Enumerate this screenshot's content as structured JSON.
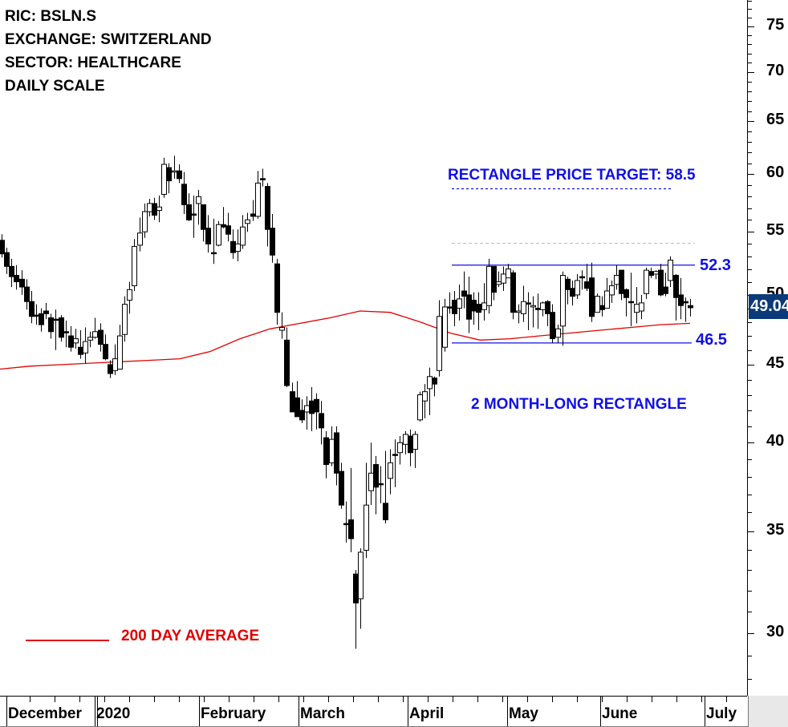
{
  "header": {
    "lines": [
      "RIC: BSLN.S",
      "EXCHANGE: SWITZERLAND",
      "SECTOR: HEALTHCARE",
      "DAILY SCALE"
    ]
  },
  "annotations": {
    "target_label": "RECTANGLE PRICE TARGET: 58.5",
    "pattern_label": "2 MONTH-LONG RECTANGLE",
    "upper_value": "52.3",
    "lower_value": "46.5",
    "legend_label": "200 DAY AVERAGE",
    "last_price": "49.04"
  },
  "colors": {
    "rect_lines": "#1010e6",
    "ma_line": "#e00000",
    "last_badge_bg": "#0b3a78",
    "candle": "#000000",
    "target_dash": "#1010e6",
    "gray_dash": "#bbbbbb"
  },
  "chart_data": {
    "type": "candlestick",
    "title": "BSLN.S Daily",
    "xlabel": "",
    "ylabel": "",
    "yscale": "log",
    "ylim": [
      26.5,
      79
    ],
    "yticks": [
      30,
      35,
      40,
      45,
      50,
      55,
      60,
      65,
      70,
      75
    ],
    "x_tick_labels": [
      "December",
      "2020",
      "February",
      "March",
      "April",
      "May",
      "June",
      "July"
    ],
    "grid": false,
    "rectangle": {
      "upper": 52.3,
      "lower": 46.5,
      "target": 58.5,
      "duration": "2 months"
    },
    "last_price": 49.04,
    "series": [
      {
        "name": "BSLN.S",
        "candles_ohlc": [
          [
            54.3,
            53.2,
            54.8,
            52.9
          ],
          [
            53.3,
            52.2,
            53.7,
            51.6
          ],
          [
            52.2,
            51.4,
            52.8,
            50.6
          ],
          [
            51.5,
            51.0,
            52.3,
            50.4
          ],
          [
            51.2,
            50.6,
            51.9,
            50.0
          ],
          [
            50.6,
            49.5,
            51.2,
            48.9
          ],
          [
            49.5,
            48.4,
            50.3,
            47.9
          ],
          [
            48.5,
            48.5,
            49.3,
            47.8
          ],
          [
            48.6,
            47.8,
            49.0,
            47.3
          ],
          [
            48.8,
            48.6,
            49.4,
            48.2
          ],
          [
            48.3,
            47.3,
            48.6,
            46.8
          ],
          [
            48.2,
            48.2,
            48.9,
            46.0
          ],
          [
            48.3,
            46.9,
            48.5,
            46.6
          ],
          [
            47.3,
            47.3,
            48.1,
            46.2
          ],
          [
            47.0,
            46.2,
            47.7,
            45.9
          ],
          [
            46.5,
            46.8,
            47.5,
            46.1
          ],
          [
            46.2,
            45.7,
            47.4,
            45.4
          ],
          [
            45.8,
            46.6,
            47.6,
            45.1
          ],
          [
            46.7,
            46.9,
            47.3,
            46.2
          ],
          [
            46.9,
            47.3,
            48.3,
            46.8
          ],
          [
            47.4,
            46.4,
            47.9,
            45.9
          ],
          [
            46.4,
            45.4,
            47.1,
            45.3
          ],
          [
            45.0,
            44.4,
            45.3,
            44.1
          ],
          [
            44.6,
            45.4,
            46.4,
            44.3
          ],
          [
            44.7,
            47.0,
            47.8,
            44.9
          ],
          [
            47.1,
            49.3,
            49.9,
            46.6
          ],
          [
            49.6,
            50.4,
            51.0,
            48.6
          ],
          [
            50.7,
            53.8,
            54.4,
            50.3
          ],
          [
            53.9,
            54.9,
            56.2,
            53.4
          ],
          [
            55.0,
            56.7,
            57.4,
            54.5
          ],
          [
            56.7,
            57.4,
            57.8,
            56.3
          ],
          [
            57.4,
            56.4,
            57.9,
            56.0
          ],
          [
            56.8,
            57.1,
            58.1,
            55.8
          ],
          [
            58.2,
            60.9,
            61.5,
            57.9
          ],
          [
            60.6,
            59.4,
            61.0,
            58.3
          ],
          [
            60.2,
            60.3,
            61.7,
            59.6
          ],
          [
            60.3,
            59.6,
            60.9,
            59.2
          ],
          [
            59.1,
            57.3,
            60.2,
            56.5
          ],
          [
            57.3,
            56.0,
            58.3,
            55.9
          ],
          [
            56.5,
            56.5,
            58.1,
            54.5
          ],
          [
            57.4,
            58.0,
            58.6,
            55.6
          ],
          [
            57.3,
            55.2,
            57.3,
            54.2
          ],
          [
            55.3,
            54.0,
            56.4,
            53.3
          ],
          [
            53.3,
            53.3,
            56.1,
            52.4
          ],
          [
            53.9,
            55.6,
            55.9,
            53.8
          ],
          [
            55.6,
            55.4,
            57.1,
            55.3
          ],
          [
            55.5,
            54.8,
            56.6,
            54.2
          ],
          [
            54.2,
            53.3,
            55.2,
            52.8
          ],
          [
            53.4,
            54.0,
            55.2,
            52.6
          ],
          [
            53.9,
            55.4,
            56.4,
            53.6
          ],
          [
            55.7,
            56.0,
            56.6,
            55.0
          ],
          [
            56.5,
            56.3,
            57.7,
            55.9
          ],
          [
            56.3,
            59.2,
            60.3,
            56.1
          ],
          [
            59.6,
            59.6,
            60.5,
            58.9
          ],
          [
            58.9,
            55.2,
            59.2,
            53.8
          ],
          [
            55.3,
            53.1,
            56.5,
            52.5
          ],
          [
            52.4,
            48.7,
            52.8,
            47.8
          ],
          [
            47.4,
            47.6,
            48.7,
            46.8
          ],
          [
            46.7,
            43.6,
            47.6,
            43.5
          ],
          [
            43.2,
            41.9,
            43.8,
            42.4
          ],
          [
            42.8,
            41.6,
            43.9,
            42.6
          ],
          [
            42.0,
            41.4,
            42.7,
            41.2
          ],
          [
            41.9,
            42.3,
            42.9,
            40.8
          ],
          [
            42.6,
            41.8,
            43.5,
            40.7
          ],
          [
            42.7,
            41.9,
            43.1,
            40.8
          ],
          [
            41.8,
            40.9,
            42.6,
            39.9
          ],
          [
            40.3,
            38.7,
            40.7,
            37.9
          ],
          [
            38.8,
            40.2,
            41.0,
            38.6
          ],
          [
            40.6,
            38.2,
            41.0,
            37.5
          ],
          [
            38.3,
            36.4,
            38.8,
            36.2
          ],
          [
            35.4,
            35.4,
            36.6,
            34.4
          ],
          [
            35.6,
            34.6,
            38.5,
            33.9
          ],
          [
            32.8,
            31.4,
            33.0,
            29.3
          ],
          [
            31.6,
            33.9,
            34.1,
            30.2
          ],
          [
            34.0,
            36.4,
            38.8,
            33.6
          ],
          [
            37.2,
            38.2,
            40.0,
            36.4
          ],
          [
            38.7,
            37.4,
            39.2,
            35.9
          ],
          [
            37.6,
            37.6,
            38.6,
            36.5
          ],
          [
            36.5,
            35.6,
            39.5,
            35.4
          ],
          [
            37.9,
            38.8,
            39.6,
            37.0
          ],
          [
            39.3,
            39.3,
            40.2,
            37.4
          ],
          [
            39.4,
            40.0,
            40.4,
            38.7
          ],
          [
            39.9,
            40.5,
            40.7,
            39.3
          ],
          [
            40.4,
            39.4,
            40.8,
            38.6
          ],
          [
            39.6,
            40.5,
            40.7,
            38.5
          ],
          [
            41.4,
            43.0,
            43.2,
            41.3
          ],
          [
            42.6,
            43.2,
            43.7,
            41.5
          ],
          [
            43.4,
            44.2,
            44.8,
            41.7
          ],
          [
            44.1,
            43.7,
            44.2,
            42.9
          ],
          [
            44.6,
            48.4,
            49.6,
            44.2
          ],
          [
            46.2,
            49.1,
            49.7,
            45.9
          ],
          [
            49.1,
            49.1,
            50.2,
            48.6
          ],
          [
            49.6,
            48.6,
            50.3,
            47.7
          ],
          [
            49.0,
            49.7,
            50.8,
            48.1
          ],
          [
            50.3,
            49.9,
            51.8,
            49.0
          ],
          [
            50.0,
            48.2,
            51.4,
            47.2
          ],
          [
            49.6,
            48.8,
            50.2,
            47.8
          ],
          [
            49.3,
            48.7,
            50.2,
            47.4
          ],
          [
            48.9,
            49.4,
            50.9,
            48.1
          ],
          [
            49.2,
            52.2,
            52.8,
            48.6
          ],
          [
            52.2,
            50.2,
            52.2,
            49.6
          ],
          [
            50.8,
            51.0,
            51.8,
            50.6
          ],
          [
            50.9,
            51.6,
            52.2,
            50.3
          ],
          [
            51.3,
            52.0,
            52.4,
            51.4
          ],
          [
            51.7,
            48.7,
            51.9,
            48.2
          ],
          [
            48.7,
            48.8,
            49.3,
            47.9
          ],
          [
            48.6,
            49.5,
            50.7,
            48.0
          ],
          [
            49.4,
            49.4,
            50.2,
            47.4
          ],
          [
            49.1,
            49.2,
            49.9,
            47.6
          ],
          [
            49.0,
            48.9,
            50.1,
            47.5
          ],
          [
            48.9,
            49.4,
            49.5,
            48.4
          ],
          [
            49.5,
            48.6,
            49.6,
            47.7
          ],
          [
            48.7,
            46.8,
            49.3,
            46.5
          ],
          [
            46.9,
            47.5,
            47.8,
            46.5
          ],
          [
            47.7,
            51.5,
            51.8,
            46.3
          ],
          [
            51.2,
            50.4,
            51.4,
            49.3
          ],
          [
            50.5,
            49.9,
            51.1,
            49.2
          ],
          [
            50.0,
            51.1,
            51.6,
            49.7
          ],
          [
            51.4,
            51.3,
            51.9,
            50.4
          ],
          [
            51.0,
            50.5,
            52.4,
            50.3
          ],
          [
            51.3,
            48.4,
            52.5,
            48.0
          ],
          [
            48.7,
            49.9,
            50.1,
            48.7
          ],
          [
            49.2,
            48.9,
            49.9,
            48.4
          ],
          [
            49.0,
            50.3,
            51.3,
            49.0
          ],
          [
            50.0,
            50.7,
            51.1,
            49.4
          ],
          [
            50.8,
            51.5,
            52.3,
            50.4
          ],
          [
            51.9,
            50.1,
            51.9,
            49.6
          ],
          [
            50.4,
            49.8,
            50.5,
            48.4
          ],
          [
            49.5,
            49.5,
            51.7,
            47.7
          ],
          [
            48.7,
            49.3,
            50.6,
            47.9
          ],
          [
            48.8,
            49.4,
            50.0,
            48.2
          ],
          [
            50.1,
            51.9,
            52.1,
            49.7
          ],
          [
            51.8,
            51.5,
            52.1,
            51.3
          ],
          [
            51.6,
            51.8,
            51.9,
            51.2
          ],
          [
            51.9,
            50.0,
            52.4,
            49.9
          ],
          [
            50.6,
            50.1,
            51.7,
            49.9
          ],
          [
            51.1,
            52.7,
            53.0,
            50.6
          ],
          [
            51.5,
            49.8,
            51.6,
            48.1
          ],
          [
            50.0,
            49.2,
            51.3,
            48.2
          ],
          [
            49.5,
            49.4,
            49.8,
            48.0
          ],
          [
            49.2,
            49.04,
            49.7,
            48.4
          ]
        ]
      },
      {
        "name": "200 DAY AVERAGE",
        "values_sampled": [
          44.7,
          44.9,
          45.0,
          45.1,
          45.2,
          45.3,
          45.4,
          45.9,
          46.8,
          47.5,
          47.9,
          48.3,
          48.8,
          48.7,
          48.0,
          47.2,
          46.7,
          46.8,
          47.0,
          47.2,
          47.4,
          47.6,
          47.8,
          47.9
        ]
      }
    ]
  }
}
